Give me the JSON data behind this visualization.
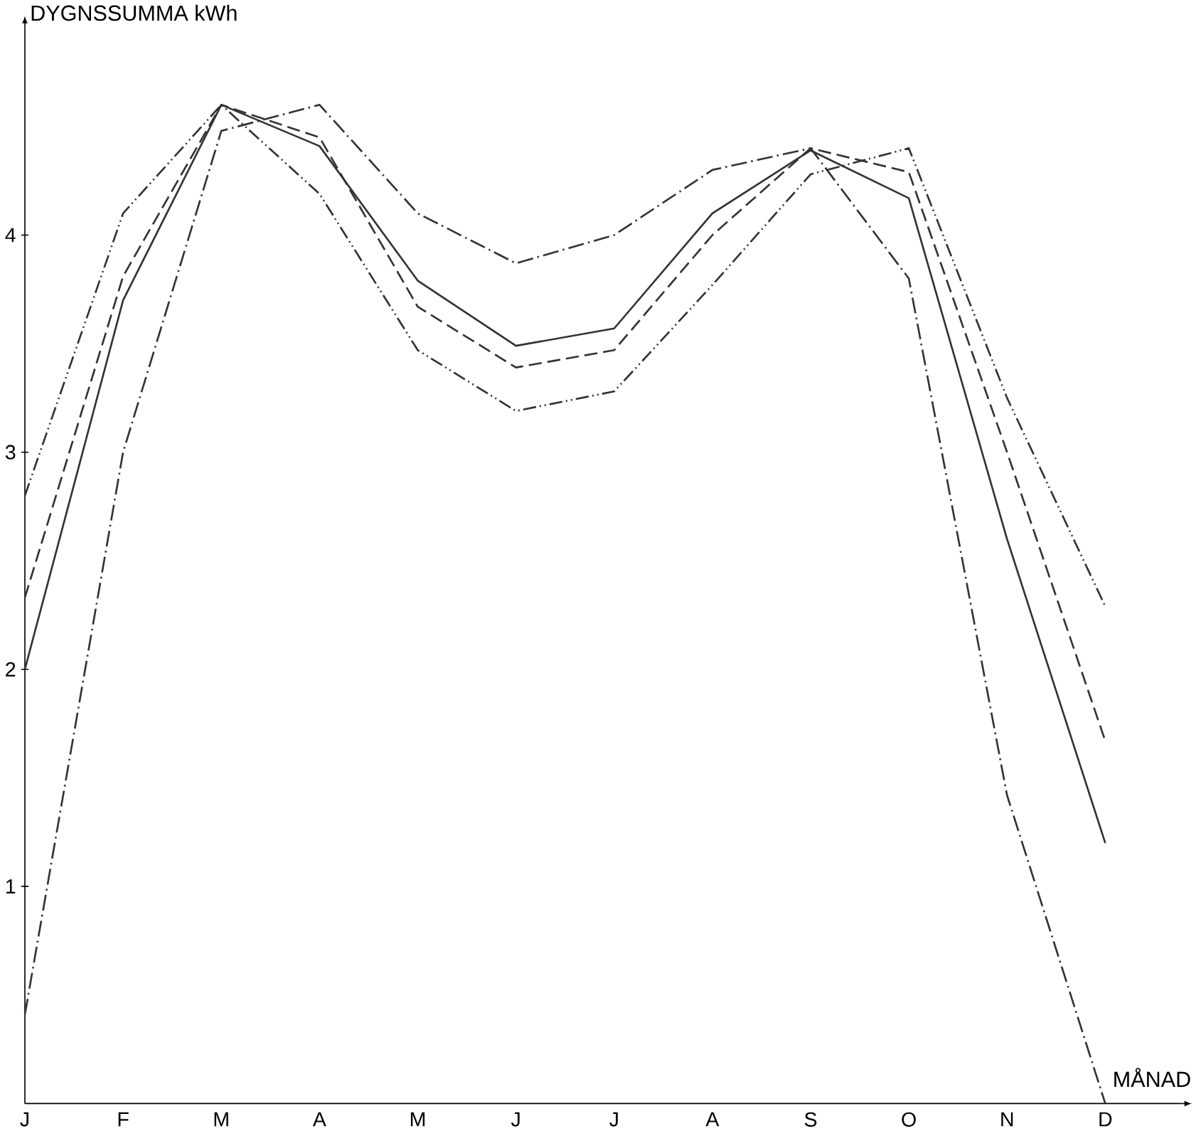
{
  "chart_data": {
    "type": "line",
    "xlabel": "MÅNAD",
    "ylabel": "DYGNSSUMMA kWh",
    "categories": [
      "J",
      "F",
      "M",
      "A",
      "M",
      "J",
      "J",
      "A",
      "S",
      "O",
      "N",
      "D"
    ],
    "ylim": [
      0,
      4.95
    ],
    "yticks": [
      1,
      2,
      3,
      4
    ],
    "grid": false,
    "marker": "none",
    "series": [
      {
        "color": "#333333",
        "line_style": "solid",
        "values": [
          2.0,
          3.7,
          4.6,
          4.41,
          3.79,
          3.49,
          3.57,
          4.1,
          4.39,
          4.17,
          2.6,
          1.2
        ]
      },
      {
        "color": "#333333",
        "line_style": "dashed",
        "values": [
          2.33,
          3.81,
          4.6,
          4.45,
          3.67,
          3.39,
          3.47,
          4.0,
          4.4,
          4.29,
          3.0,
          1.67
        ]
      },
      {
        "color": "#333333",
        "line_style": "dashdot",
        "values": [
          0.41,
          3.0,
          4.48,
          4.6,
          4.1,
          3.87,
          4.0,
          4.3,
          4.4,
          3.8,
          1.42,
          0
        ]
      },
      {
        "color": "#333333",
        "line_style": "dashdotdot",
        "values": [
          2.8,
          4.1,
          4.6,
          4.19,
          3.47,
          3.19,
          3.28,
          3.77,
          4.28,
          4.4,
          3.25,
          2.29
        ]
      }
    ]
  }
}
